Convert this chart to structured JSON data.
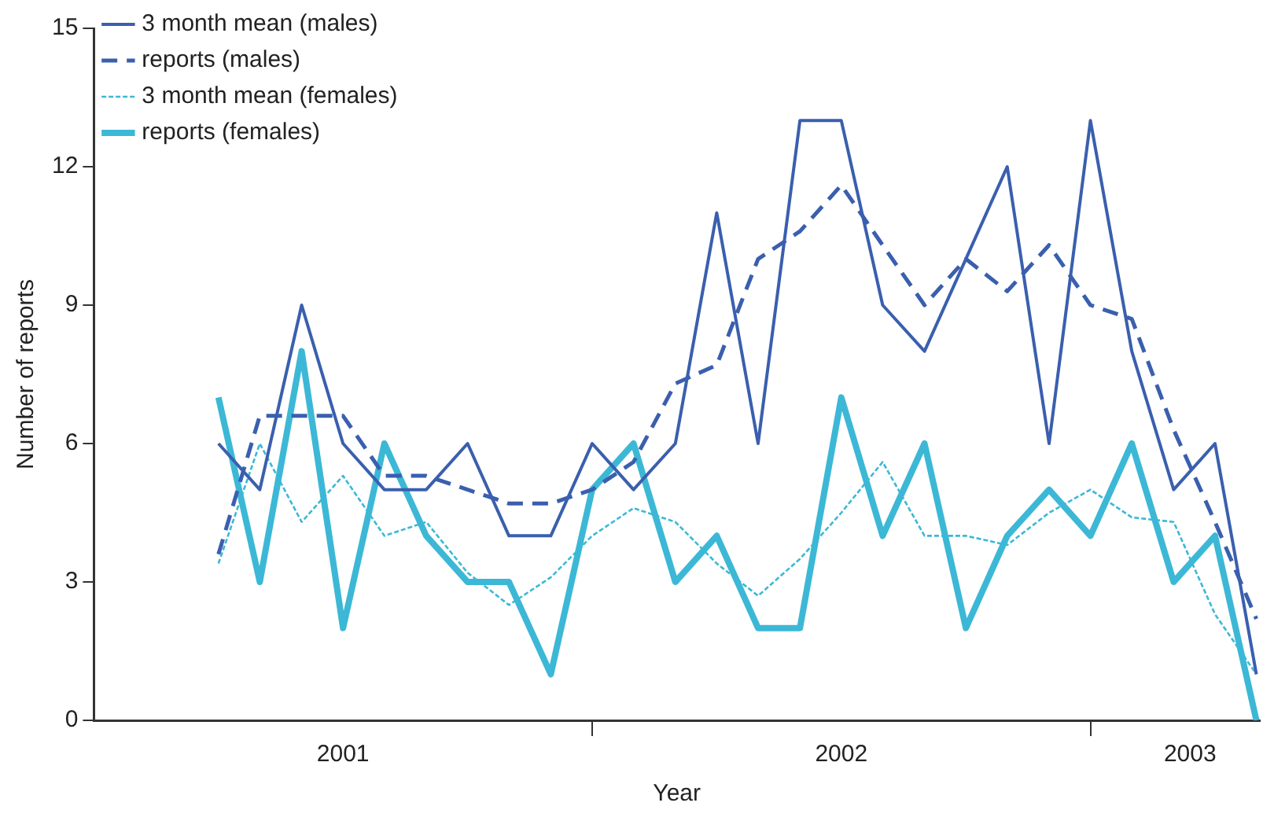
{
  "chart_data": {
    "type": "line",
    "xlabel": "Year",
    "ylabel": "Number of reports",
    "x": [
      2001.25,
      2001.333,
      2001.417,
      2001.5,
      2001.583,
      2001.667,
      2001.75,
      2001.833,
      2001.917,
      2002.0,
      2002.083,
      2002.167,
      2002.25,
      2002.333,
      2002.417,
      2002.5,
      2002.583,
      2002.667,
      2002.75,
      2002.833,
      2002.917,
      2003.0,
      2003.083,
      2003.167,
      2003.25,
      2003.333
    ],
    "xlim": [
      2001.0,
      2003.34
    ],
    "xticks": [
      {
        "value": 2001.5,
        "label": "2001"
      },
      {
        "value": 2002.0,
        "label": null
      },
      {
        "value": 2002.5,
        "label": "2002"
      },
      {
        "value": 2003.0,
        "label": null
      },
      {
        "value": 2003.2,
        "label": "2003"
      }
    ],
    "ylim": [
      0,
      15
    ],
    "yticks": [
      0,
      3,
      6,
      9,
      12,
      15
    ],
    "grid": false,
    "legend": "top left",
    "marker": "none",
    "series": [
      {
        "name": "3 month mean (males)",
        "color": "#3a5fae",
        "line_style": "solid",
        "values": [
          6,
          5,
          9,
          6,
          5,
          5,
          6,
          4,
          4,
          6,
          5,
          6,
          11,
          6,
          13,
          13,
          9,
          8,
          10,
          12,
          6,
          13,
          8,
          5,
          6,
          1
        ]
      },
      {
        "name": "reports (males)",
        "color": "#3a5fae",
        "line_style": "dashed",
        "values": [
          3.6,
          6.6,
          6.6,
          6.6,
          5.3,
          5.3,
          5.0,
          4.7,
          4.7,
          5.0,
          5.6,
          7.3,
          7.7,
          10.0,
          10.6,
          11.6,
          10.3,
          9.0,
          10.0,
          9.3,
          10.3,
          9.0,
          8.7,
          6.3,
          4.3,
          2.2
        ]
      },
      {
        "name": "3 month mean (females)",
        "color": "#3cb8d6",
        "line_style": "dotted",
        "values": [
          3.4,
          6.0,
          4.3,
          5.3,
          4.0,
          4.3,
          3.2,
          2.5,
          3.1,
          4.0,
          4.6,
          4.3,
          3.4,
          2.7,
          3.5,
          4.5,
          5.6,
          4.0,
          4.0,
          3.8,
          4.5,
          5.0,
          4.4,
          4.3,
          2.3,
          1.0
        ]
      },
      {
        "name": "reports (females)",
        "color": "#3cb8d6",
        "line_style": "solid",
        "values": [
          7,
          3,
          8,
          2,
          6,
          4,
          3,
          3,
          1,
          5,
          6,
          3,
          4,
          2,
          2,
          7,
          4,
          6,
          2,
          4,
          5,
          4,
          6,
          3,
          4,
          0
        ]
      }
    ]
  }
}
